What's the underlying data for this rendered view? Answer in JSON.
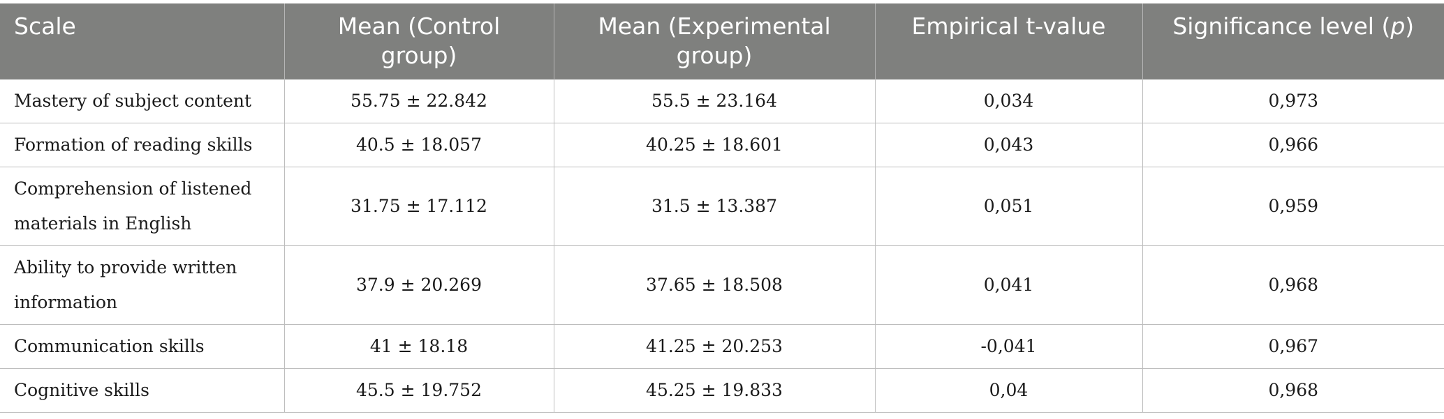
{
  "table": {
    "headers": [
      "Scale",
      "Mean (Control group)",
      "Mean (Experimental group)",
      "Empirical t-value",
      "Significance level ("
    ],
    "header_last_italic": "p",
    "header_last_suffix": ")",
    "rows": [
      [
        "Mastery of subject content",
        "55.75 ± 22.842",
        "55.5 ± 23.164",
        "0,034",
        "0,973"
      ],
      [
        "Formation of reading skills",
        "40.5 ± 18.057",
        "40.25 ± 18.601",
        "0,043",
        "0,966"
      ],
      [
        "Comprehension of listened materials in English",
        "31.75 ± 17.112",
        "31.5 ± 13.387",
        "0,051",
        "0,959"
      ],
      [
        "Ability to provide written information",
        "37.9 ± 20.269",
        "37.65 ± 18.508",
        "0,041",
        "0,968"
      ],
      [
        "Communication skills",
        "41 ± 18.18",
        "41.25 ± 20.253",
        "-0,041",
        "0,967"
      ],
      [
        "Cognitive skills",
        "45.5 ± 19.752",
        "45.25 ± 19.833",
        "0,04",
        "0,968"
      ]
    ]
  },
  "colors": {
    "header_bg": "#7f807e",
    "header_text": "#ffffff",
    "grid_line": "#bdbdbd"
  }
}
